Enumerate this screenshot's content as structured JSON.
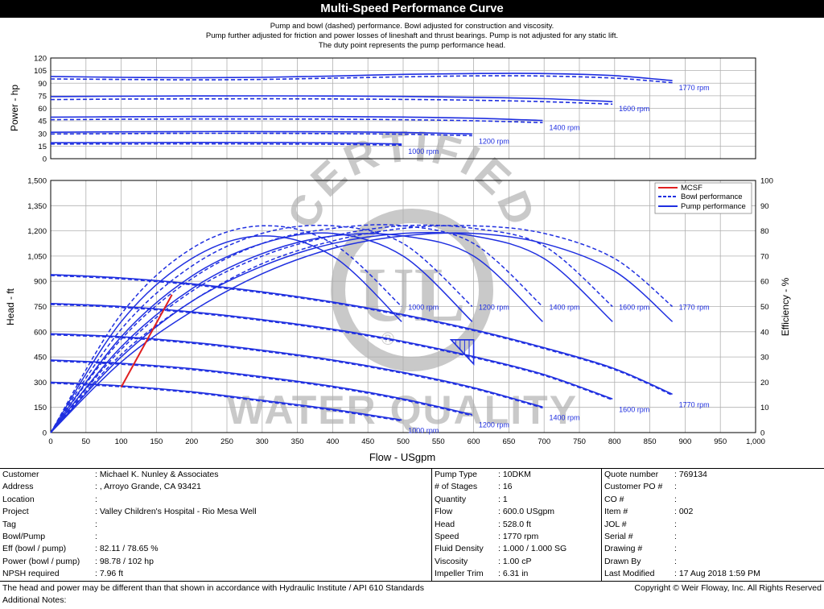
{
  "header": {
    "title": "Multi-Speed Performance Curve",
    "notes": [
      "Pump and bowl (dashed) performance. Bowl adjusted for construction and viscosity.",
      "Pump further adjusted for friction and power losses of lineshaft and thrust bearings. Pump is not adjusted for any static lift.",
      "The duty point represents the pump performance head."
    ]
  },
  "watermark": {
    "top": "CERTIFIED",
    "logo": "UL",
    "bottom": "WATER QUALITY",
    "mark": "®"
  },
  "colors": {
    "curve": "#1f2fe0",
    "mcsf": "#e02020",
    "grid": "#b0b0b0",
    "watermark": "#9a9a9a"
  },
  "chart_data": [
    {
      "type": "line",
      "ylabel": "Power - hp",
      "xlim": [
        0,
        1000
      ],
      "ylim": [
        0,
        120
      ],
      "yticks": [
        "0",
        "15",
        "30",
        "45",
        "60",
        "75",
        "90",
        "105",
        "120"
      ],
      "series": [
        {
          "name": "1000 rpm",
          "style": "pump",
          "x": [
            0,
            100,
            200,
            300,
            400,
            498
          ],
          "y": [
            19,
            19.2,
            19.4,
            19.3,
            18.9,
            17.5
          ]
        },
        {
          "name": "1000 rpm",
          "style": "bowl",
          "x": [
            0,
            100,
            200,
            300,
            400,
            498
          ],
          "y": [
            17.5,
            17.6,
            17.7,
            17.6,
            17.2,
            16
          ]
        },
        {
          "name": "1200 rpm",
          "style": "pump",
          "x": [
            0,
            100,
            200,
            300,
            400,
            500,
            598
          ],
          "y": [
            31.5,
            32,
            32.3,
            32.3,
            32,
            31.3,
            29.5
          ]
        },
        {
          "name": "1200 rpm",
          "style": "bowl",
          "x": [
            0,
            100,
            200,
            300,
            400,
            500,
            598
          ],
          "y": [
            29.5,
            29.9,
            30.2,
            30.2,
            29.9,
            29.2,
            27.5
          ]
        },
        {
          "name": "1400 rpm",
          "style": "pump",
          "x": [
            0,
            100,
            200,
            300,
            400,
            500,
            600,
            698
          ],
          "y": [
            49.5,
            50,
            50.3,
            50.4,
            50.2,
            49.6,
            48.3,
            45.5
          ]
        },
        {
          "name": "1400 rpm",
          "style": "bowl",
          "x": [
            0,
            100,
            200,
            300,
            400,
            500,
            600,
            698
          ],
          "y": [
            46.5,
            47,
            47.3,
            47.3,
            47.1,
            46.5,
            45.2,
            43
          ]
        },
        {
          "name": "1600 rpm",
          "style": "pump",
          "x": [
            0,
            100,
            200,
            300,
            400,
            500,
            600,
            700,
            797
          ],
          "y": [
            74,
            74.5,
            74.8,
            74.9,
            74.7,
            74.2,
            73.2,
            71.5,
            68
          ]
        },
        {
          "name": "1600 rpm",
          "style": "bowl",
          "x": [
            0,
            100,
            200,
            300,
            400,
            500,
            600,
            700,
            797
          ],
          "y": [
            70.5,
            71,
            71.3,
            71.4,
            71.2,
            70.7,
            69.7,
            68,
            65
          ]
        },
        {
          "name": "1770 rpm",
          "style": "pump",
          "x": [
            0,
            100,
            200,
            300,
            400,
            500,
            600,
            700,
            800,
            882
          ],
          "y": [
            98,
            97,
            96.5,
            97,
            98.5,
            100.5,
            101.5,
            101.5,
            99,
            93
          ]
        },
        {
          "name": "1770 rpm",
          "style": "bowl",
          "x": [
            0,
            100,
            200,
            300,
            400,
            500,
            600,
            700,
            800,
            882
          ],
          "y": [
            95,
            94.5,
            94,
            94.5,
            96,
            97.5,
            98.7,
            98.5,
            96,
            90.5
          ]
        }
      ]
    },
    {
      "type": "line",
      "xlabel": "Flow - USgpm",
      "ylabel": "Head - ft",
      "y2label": "Efficiency - %",
      "xlim": [
        0,
        1000
      ],
      "ylim": [
        0,
        1500
      ],
      "y2lim": [
        0,
        100
      ],
      "xticks": [
        "0",
        "50",
        "100",
        "150",
        "200",
        "250",
        "300",
        "350",
        "400",
        "450",
        "500",
        "550",
        "600",
        "650",
        "700",
        "750",
        "800",
        "850",
        "900",
        "950",
        "1,000"
      ],
      "yticks": [
        "0",
        "150",
        "300",
        "450",
        "600",
        "750",
        "900",
        "1,050",
        "1,200",
        "1,350",
        "1,500"
      ],
      "y2ticks": [
        "0",
        "10",
        "20",
        "30",
        "40",
        "50",
        "60",
        "70",
        "80",
        "90",
        "100"
      ],
      "legend": {
        "position": "top-right",
        "entries": [
          "MCSF",
          "Bowl performance",
          "Pump performance"
        ]
      },
      "head_series": [
        {
          "name": "1000 rpm",
          "x": [
            0,
            100,
            200,
            300,
            400,
            498
          ],
          "y": [
            300,
            278,
            243,
            192,
            138,
            75
          ]
        },
        {
          "name": "1200 rpm",
          "x": [
            0,
            100,
            200,
            300,
            400,
            500,
            598
          ],
          "y": [
            432,
            412,
            380,
            332,
            275,
            200,
            107
          ]
        },
        {
          "name": "1400 rpm",
          "x": [
            0,
            100,
            200,
            300,
            400,
            500,
            600,
            698
          ],
          "y": [
            588,
            570,
            537,
            490,
            432,
            358,
            267,
            152
          ]
        },
        {
          "name": "1600 rpm",
          "x": [
            0,
            100,
            200,
            300,
            400,
            500,
            600,
            700,
            797
          ],
          "y": [
            768,
            750,
            718,
            672,
            615,
            542,
            452,
            345,
            200
          ]
        },
        {
          "name": "1770 rpm",
          "x": [
            0,
            100,
            200,
            300,
            400,
            500,
            600,
            700,
            800,
            882
          ],
          "y": [
            940,
            920,
            885,
            837,
            777,
            702,
            612,
            505,
            380,
            228
          ]
        }
      ],
      "efficiency_series": [
        {
          "name": "1000 rpm",
          "style": "pump",
          "x": [
            0,
            100,
            200,
            300,
            400,
            498
          ],
          "y": [
            0,
            44,
            69,
            78,
            70,
            44
          ]
        },
        {
          "name": "1000 rpm",
          "style": "bowl",
          "x": [
            0,
            100,
            200,
            300,
            400,
            498
          ],
          "y": [
            0,
            47,
            73,
            82,
            75,
            50
          ]
        },
        {
          "name": "1200 rpm",
          "style": "pump",
          "x": [
            0,
            100,
            200,
            300,
            400,
            500,
            598
          ],
          "y": [
            0,
            38,
            62,
            75,
            79,
            70,
            44
          ]
        },
        {
          "name": "1200 rpm",
          "style": "bowl",
          "x": [
            0,
            100,
            200,
            300,
            400,
            500,
            598
          ],
          "y": [
            0,
            41,
            66,
            79,
            82,
            75,
            50
          ]
        },
        {
          "name": "1400 rpm",
          "style": "pump",
          "x": [
            0,
            100,
            200,
            300,
            400,
            500,
            600,
            698
          ],
          "y": [
            0,
            34,
            57,
            71,
            78,
            78,
            70,
            44
          ]
        },
        {
          "name": "1400 rpm",
          "style": "bowl",
          "x": [
            0,
            100,
            200,
            300,
            400,
            500,
            600,
            698
          ],
          "y": [
            0,
            37,
            61,
            75,
            81,
            82,
            75,
            50
          ]
        },
        {
          "name": "1600 rpm",
          "style": "pump",
          "x": [
            0,
            100,
            200,
            300,
            400,
            500,
            600,
            700,
            797
          ],
          "y": [
            0,
            30,
            52,
            66,
            75,
            79,
            78,
            69,
            44
          ]
        },
        {
          "name": "1600 rpm",
          "style": "bowl",
          "x": [
            0,
            100,
            200,
            300,
            400,
            500,
            600,
            700,
            797
          ],
          "y": [
            0,
            33,
            56,
            70,
            78,
            82,
            81,
            74,
            50
          ]
        },
        {
          "name": "1770 rpm",
          "style": "pump",
          "x": [
            0,
            100,
            200,
            300,
            400,
            500,
            600,
            700,
            800,
            882
          ],
          "y": [
            0,
            28,
            48,
            63,
            73,
            78,
            79,
            75,
            64,
            44
          ]
        },
        {
          "name": "1770 rpm",
          "style": "bowl",
          "x": [
            0,
            100,
            200,
            300,
            400,
            500,
            600,
            700,
            800,
            882
          ],
          "y": [
            0,
            31,
            52,
            67,
            76,
            81,
            82,
            79,
            69,
            50
          ]
        }
      ],
      "mcsf_line": {
        "x": [
          100,
          172
        ],
        "y": [
          270,
          820
        ]
      },
      "duty_point": {
        "flow": 600,
        "head": 528
      }
    }
  ],
  "info": {
    "col1": [
      {
        "label": "Customer",
        "value": ": Michael K. Nunley & Associates"
      },
      {
        "label": "Address",
        "value": ": , Arroyo Grande, CA 93421"
      },
      {
        "label": "Location",
        "value": ":"
      },
      {
        "label": "Project",
        "value": ": Valley Children's Hospital - Rio Mesa Well"
      },
      {
        "label": "Tag",
        "value": ":"
      },
      {
        "label": "Bowl/Pump",
        "value": ":"
      },
      {
        "label": "Eff (bowl / pump)",
        "value": ": 82.11 / 78.65 %"
      },
      {
        "label": "Power (bowl / pump)",
        "value": ": 98.78 / 102 hp"
      },
      {
        "label": "NPSH required",
        "value": ": 7.96 ft"
      }
    ],
    "col2": [
      {
        "label": "Pump Type",
        "value": ": 10DKM"
      },
      {
        "label": "# of Stages",
        "value": ": 16"
      },
      {
        "label": "Quantity",
        "value": ": 1"
      },
      {
        "label": "Flow",
        "value": ": 600.0 USgpm"
      },
      {
        "label": "Head",
        "value": ": 528.0 ft"
      },
      {
        "label": "Speed",
        "value": ": 1770 rpm"
      },
      {
        "label": "Fluid Density",
        "value": ": 1.000 / 1.000 SG"
      },
      {
        "label": "Viscosity",
        "value": ": 1.00 cP"
      },
      {
        "label": "Impeller Trim",
        "value": ": 6.31 in"
      }
    ],
    "col3": [
      {
        "label": "Quote number",
        "value": ": 769134"
      },
      {
        "label": "Customer PO #",
        "value": ":"
      },
      {
        "label": "CO #",
        "value": ":"
      },
      {
        "label": "Item #",
        "value": ": 002"
      },
      {
        "label": "JOL #",
        "value": ":"
      },
      {
        "label": "Serial #",
        "value": ":"
      },
      {
        "label": "Drawing #",
        "value": ":"
      },
      {
        "label": "Drawn By",
        "value": ":"
      },
      {
        "label": "Last Modified",
        "value": ": 17 Aug 2018 1:59 PM"
      }
    ]
  },
  "footer": {
    "disclaimer": "The head and power may be different than that shown in accordance with Hydraulic Institute / API 610 Standards",
    "copyright": "Copyright © Weir Floway, Inc. All Rights Reserved",
    "notes_label": "Additional Notes:"
  }
}
